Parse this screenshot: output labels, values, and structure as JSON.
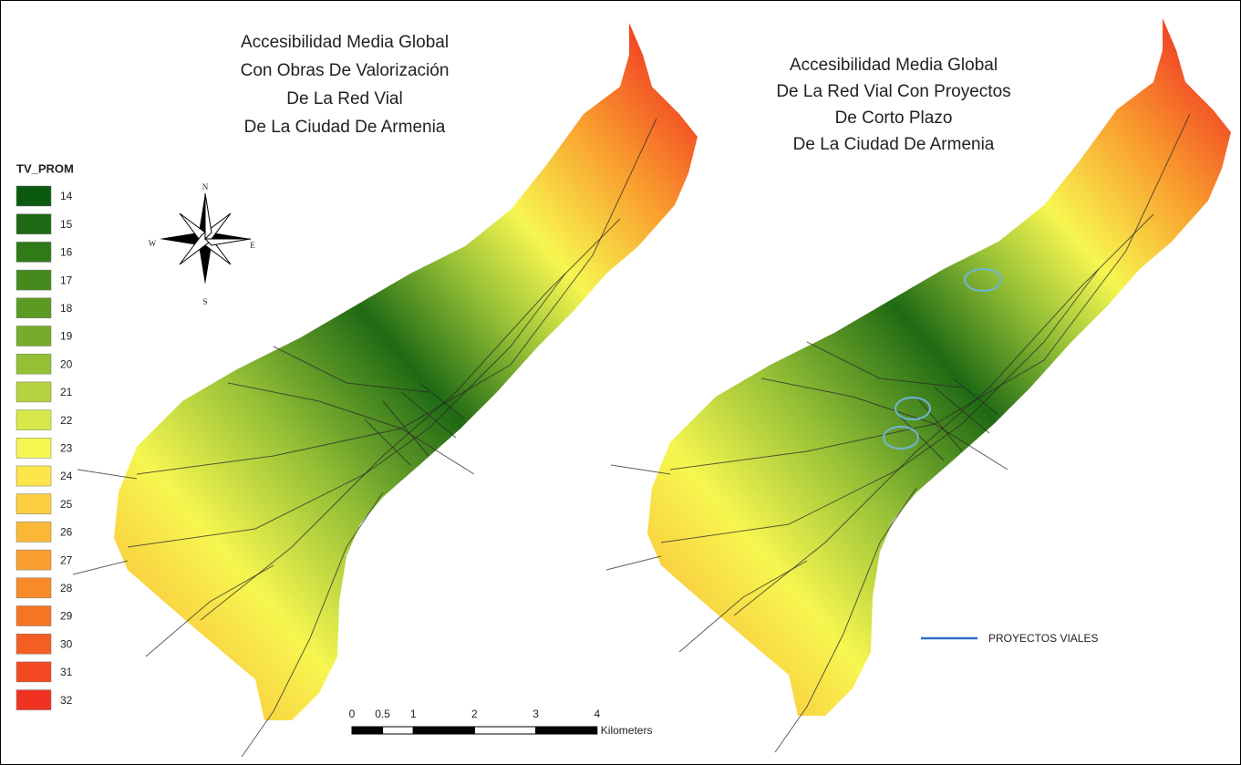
{
  "maps": [
    {
      "title": [
        "Accesibilidad Media Global",
        "Con Obras De Valorización",
        "De La Red Vial",
        "De La Ciudad De Armenia"
      ]
    },
    {
      "title": [
        "Accesibilidad Media Global",
        "De La Red Vial Con Proyectos",
        "De Corto Plazo",
        "De La Ciudad De Armenia"
      ]
    }
  ],
  "legend": {
    "title": "TV_PROM",
    "items": [
      {
        "label": 14,
        "color": "#0b5a10"
      },
      {
        "label": 15,
        "color": "#1f6a14"
      },
      {
        "label": 16,
        "color": "#317a18"
      },
      {
        "label": 17,
        "color": "#468a1e"
      },
      {
        "label": 18,
        "color": "#5c9a24"
      },
      {
        "label": 19,
        "color": "#77ab2c"
      },
      {
        "label": 20,
        "color": "#95c036"
      },
      {
        "label": 21,
        "color": "#b5d33e"
      },
      {
        "label": 22,
        "color": "#d8e848"
      },
      {
        "label": 23,
        "color": "#f7f650"
      },
      {
        "label": 24,
        "color": "#fde64a"
      },
      {
        "label": 25,
        "color": "#fccf40"
      },
      {
        "label": 26,
        "color": "#fbb836"
      },
      {
        "label": 27,
        "color": "#f9a02e"
      },
      {
        "label": 28,
        "color": "#f88a28"
      },
      {
        "label": 29,
        "color": "#f67424"
      },
      {
        "label": 30,
        "color": "#f45e22"
      },
      {
        "label": 31,
        "color": "#f24822"
      },
      {
        "label": 32,
        "color": "#f03222"
      }
    ]
  },
  "compass": {
    "n": "N",
    "s": "S",
    "e": "E",
    "w": "W"
  },
  "scale_bar": {
    "ticks": [
      0,
      0.5,
      1,
      2,
      3,
      4
    ],
    "unit": "Kilometers"
  },
  "projects_legend": {
    "label": "PROYECTOS VIALES",
    "color": "#2f6fd0"
  }
}
